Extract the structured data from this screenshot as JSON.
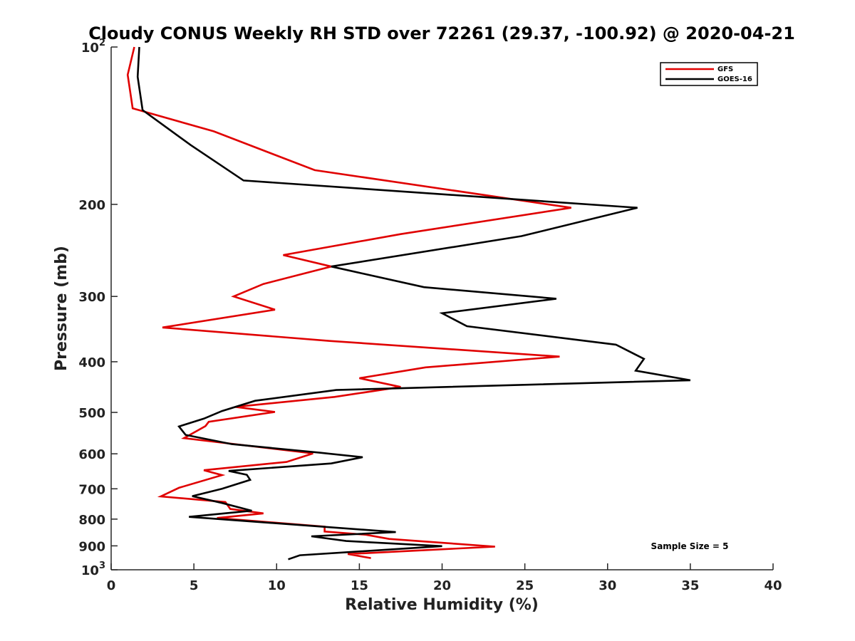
{
  "chart_data": {
    "type": "line",
    "title": "Cloudy CONUS Weekly RH STD over 72261 (29.37, -100.92) @ 2020-04-21",
    "xlabel": "Relative Humidity (%)",
    "ylabel": "Pressure (mb)",
    "xlim": [
      0,
      40
    ],
    "ylim": [
      100,
      1000
    ],
    "y_scale": "log",
    "y_reversed": true,
    "x_ticks": [
      "0",
      "5",
      "10",
      "15",
      "20",
      "25",
      "30",
      "35",
      "40"
    ],
    "y_ticks": [
      {
        "value": 100,
        "base": "10",
        "exp": "2"
      },
      {
        "value": 200,
        "label": "200"
      },
      {
        "value": 300,
        "label": "300"
      },
      {
        "value": 400,
        "label": "400"
      },
      {
        "value": 500,
        "label": "500"
      },
      {
        "value": 600,
        "label": "600"
      },
      {
        "value": 700,
        "label": "700"
      },
      {
        "value": 800,
        "label": "800"
      },
      {
        "value": 900,
        "label": "900"
      },
      {
        "value": 1000,
        "base": "10",
        "exp": "3"
      }
    ],
    "grid": false,
    "legend_position": "top-right",
    "annotation": "Sample Size = 5",
    "series": [
      {
        "name": "GFS",
        "color": "#e00000",
        "x": [
          1.4,
          1.0,
          1.3,
          6.2,
          12.3,
          27.8,
          17.5,
          10.4,
          13.3,
          9.2,
          7.4,
          9.9,
          3.1,
          13.2,
          27.1,
          19.0,
          15.0,
          17.5,
          13.5,
          7.5,
          9.9,
          5.9,
          5.7,
          4.4,
          12.2,
          10.6,
          5.6,
          6.7,
          4.1,
          3.0,
          6.9,
          7.2,
          9.2,
          6.4,
          12.9,
          12.9,
          15.4,
          16.8,
          23.2,
          14.3,
          15.7
        ],
        "y": [
          100,
          113,
          131,
          145,
          172,
          203,
          228,
          250,
          263,
          284,
          300,
          318,
          344,
          365,
          391,
          410,
          430,
          447,
          467,
          488,
          499,
          521,
          531,
          560,
          599,
          622,
          645,
          659,
          697,
          724,
          742,
          765,
          780,
          796,
          827,
          845,
          857,
          873,
          903,
          933,
          950
        ]
      },
      {
        "name": "GOES-16",
        "color": "#000000",
        "x": [
          1.7,
          1.6,
          1.9,
          4.8,
          8.0,
          31.8,
          24.8,
          13.3,
          18.9,
          26.9,
          20.0,
          21.5,
          30.5,
          32.2,
          31.7,
          35.0,
          13.6,
          8.7,
          6.7,
          5.6,
          4.1,
          4.5,
          7.3,
          12.6,
          15.2,
          13.3,
          7.1,
          8.2,
          8.4,
          6.7,
          4.9,
          6.7,
          8.5,
          4.7,
          17.2,
          12.1,
          14.2,
          20.0,
          11.4,
          10.7
        ],
        "y": [
          100,
          114,
          132,
          154,
          180,
          203,
          230,
          263,
          288,
          303,
          323,
          342,
          371,
          395,
          416,
          434,
          453,
          475,
          497,
          514,
          532,
          552,
          575,
          597,
          609,
          626,
          647,
          658,
          673,
          700,
          723,
          745,
          771,
          792,
          847,
          863,
          881,
          901,
          938,
          955
        ]
      }
    ]
  }
}
